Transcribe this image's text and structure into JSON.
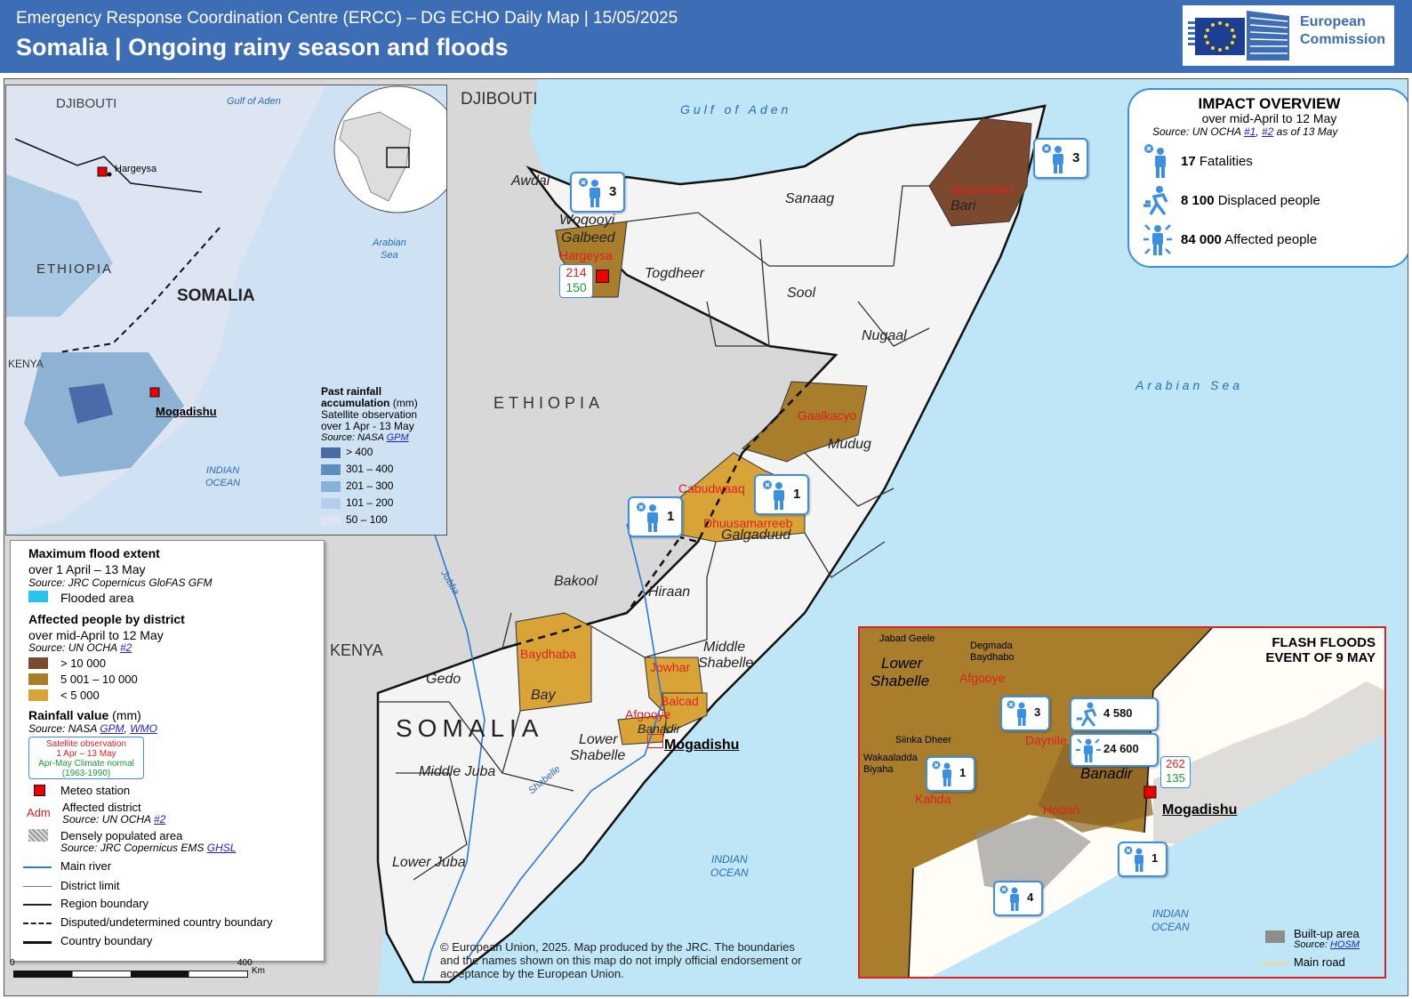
{
  "header": {
    "supertitle": "Emergency Response Coordination Centre (ERCC) – DG ECHO Daily Map | 15/05/2025",
    "title": "Somalia | Ongoing rainy season and floods",
    "logo_line1": "European",
    "logo_line2": "Commission"
  },
  "main_map": {
    "countries": {
      "djibouti": "DJIBOUTI",
      "ethiopia": "ETHIOPIA",
      "kenya": "KENYA",
      "somalia": "SOMALIA"
    },
    "seas": {
      "gulf_of_aden": "Gulf of Aden",
      "arabian_sea": "Arabian Sea",
      "indian_ocean_1": "INDIAN",
      "indian_ocean_2": "OCEAN"
    },
    "regions": [
      "Awdal",
      "Woqooyi",
      "Galbeed",
      "Togdheer",
      "Sanaag",
      "Sool",
      "Bari",
      "Nugaal",
      "Mudug",
      "Galgaduud",
      "Hiraan",
      "Bakool",
      "Middle",
      "Shabelle",
      "Gedo",
      "Bay",
      "Lower",
      "Shabelle",
      "Middle Juba",
      "Lower Juba",
      "Banadir"
    ],
    "affected_districts": [
      "Hargeysa",
      "Iskushuban",
      "Gaalkacyo",
      "Cabudwaaq",
      "Dhuusamarreeb",
      "Baydhaba",
      "Jowhar",
      "Balcad",
      "Afgooye"
    ],
    "rivers": [
      "Jubba",
      "Shabelle"
    ],
    "capital": "Mogadishu",
    "station_hargeysa": {
      "satellite": "214",
      "normal": "150"
    },
    "fatality_markers": [
      "3",
      "3",
      "1",
      "1"
    ],
    "scale": {
      "zero": "0",
      "max": "400",
      "unit": "Km"
    },
    "disclaimer": "© European Union, 2025. Map produced by the JRC. The boundaries and the names shown on this map do not imply official endorsement or acceptance by the European Union."
  },
  "inset": {
    "countries": {
      "djibouti": "DJIBOUTI",
      "ethiopia": "ETHIOPIA",
      "somalia": "SOMALIA",
      "kenya": "KENYA"
    },
    "seas": {
      "gulf": "Gulf of Aden",
      "arabian_1": "Arabian",
      "arabian_2": "Sea",
      "indian_1": "INDIAN",
      "indian_2": "OCEAN"
    },
    "cities": {
      "hargeysa": "Hargeysa",
      "mogadishu": "Mogadishu"
    },
    "legend_title_1": "Past rainfall",
    "legend_title_2": "accumulation",
    "legend_unit": "(mm)",
    "legend_sub_1": "Satellite observation",
    "legend_sub_2": "over 1 Apr - 13 May",
    "legend_source": "Source: NASA",
    "legend_source_link": "GPM",
    "classes": [
      {
        "label": "> 400",
        "color": "#4a6aa8"
      },
      {
        "label": "301 – 400",
        "color": "#5a8fc0"
      },
      {
        "label": "201 – 300",
        "color": "#86b2d9"
      },
      {
        "label": "101 – 200",
        "color": "#b6cfe9"
      },
      {
        "label": "50 – 100",
        "color": "#dde5f2"
      }
    ]
  },
  "legend": {
    "flood_title": "Maximum  flood extent",
    "flood_period": "over 1 April – 13 May",
    "flood_source": "Source: JRC Copernicus GloFAS GFM",
    "flooded_area": "Flooded area",
    "affected_title": "Affected people by district",
    "affected_period": "over mid-April to 12 May",
    "affected_source": "Source: UN OCHA",
    "affected_link": "#2",
    "affected_classes": [
      {
        "label": "> 10 000",
        "color": "#7b4a2e"
      },
      {
        "label": "5 001 – 10 000",
        "color": "#a87d2c"
      },
      {
        "label": "< 5 000",
        "color": "#d9a437"
      }
    ],
    "rainfall_title": "Rainfall value",
    "rainfall_unit": "(mm)",
    "rainfall_source": "Source: NASA",
    "rainfall_link1": "GPM",
    "rainfall_link2": "WMO",
    "sat_obs": "Satellite observation",
    "sat_period": "1 Apr – 13 May",
    "normal": "Apr-May Climate normal",
    "normal_period": "(1963-1990)",
    "meteo_station": "Meteo station",
    "adm_sample": "Adm",
    "affected_district": "Affected district",
    "affected_district_source": "Source: UN OCHA",
    "affected_district_link": "#2",
    "dense_pop": "Densely populated area",
    "dense_source": "Source: JRC Copernicus EMS",
    "dense_link": "GHSL",
    "main_river": "Main river",
    "district_limit": "District limit",
    "region_boundary": "Region  boundary",
    "disputed": "Disputed/undetermined  country boundary",
    "country_boundary": "Country boundary"
  },
  "impact": {
    "title": "IMPACT OVERVIEW",
    "period": "over mid-April to 12 May",
    "source": "Source: UN OCHA",
    "link1": "#1",
    "link2": "#2",
    "source_tail": "as of 13 May",
    "fatalities_value": "17",
    "fatalities_label": "Fatalities",
    "displaced_value": "8 100",
    "displaced_label": "Displaced people",
    "affected_value": "84 000",
    "affected_label": "Affected people"
  },
  "flash_floods": {
    "title_1": "FLASH FLOODS",
    "title_2": "EVENT OF 9 MAY",
    "regions": {
      "lower": "Lower",
      "shabelle": "Shabelle",
      "banadir": "Banadir"
    },
    "places": [
      "Jabad Geele",
      "Degmada",
      "Baydhabo",
      "Siinka Dheer",
      "Wakaaladda",
      "Biyaha"
    ],
    "districts": [
      "Afgooye",
      "Daynile",
      "Kahda",
      "Hodan"
    ],
    "capital": "Mogadishu",
    "markers": {
      "daynile": "3",
      "kahda": "1",
      "mogadishu": "1",
      "coast": "4"
    },
    "displaced": "4 580",
    "affected": "24 600",
    "station": {
      "satellite": "262",
      "normal": "135"
    },
    "ocean_1": "INDIAN",
    "ocean_2": "OCEAN",
    "builtup": "Built-up area",
    "builtup_source": "Source:",
    "builtup_link": "HOSM",
    "main_road": "Main road"
  }
}
